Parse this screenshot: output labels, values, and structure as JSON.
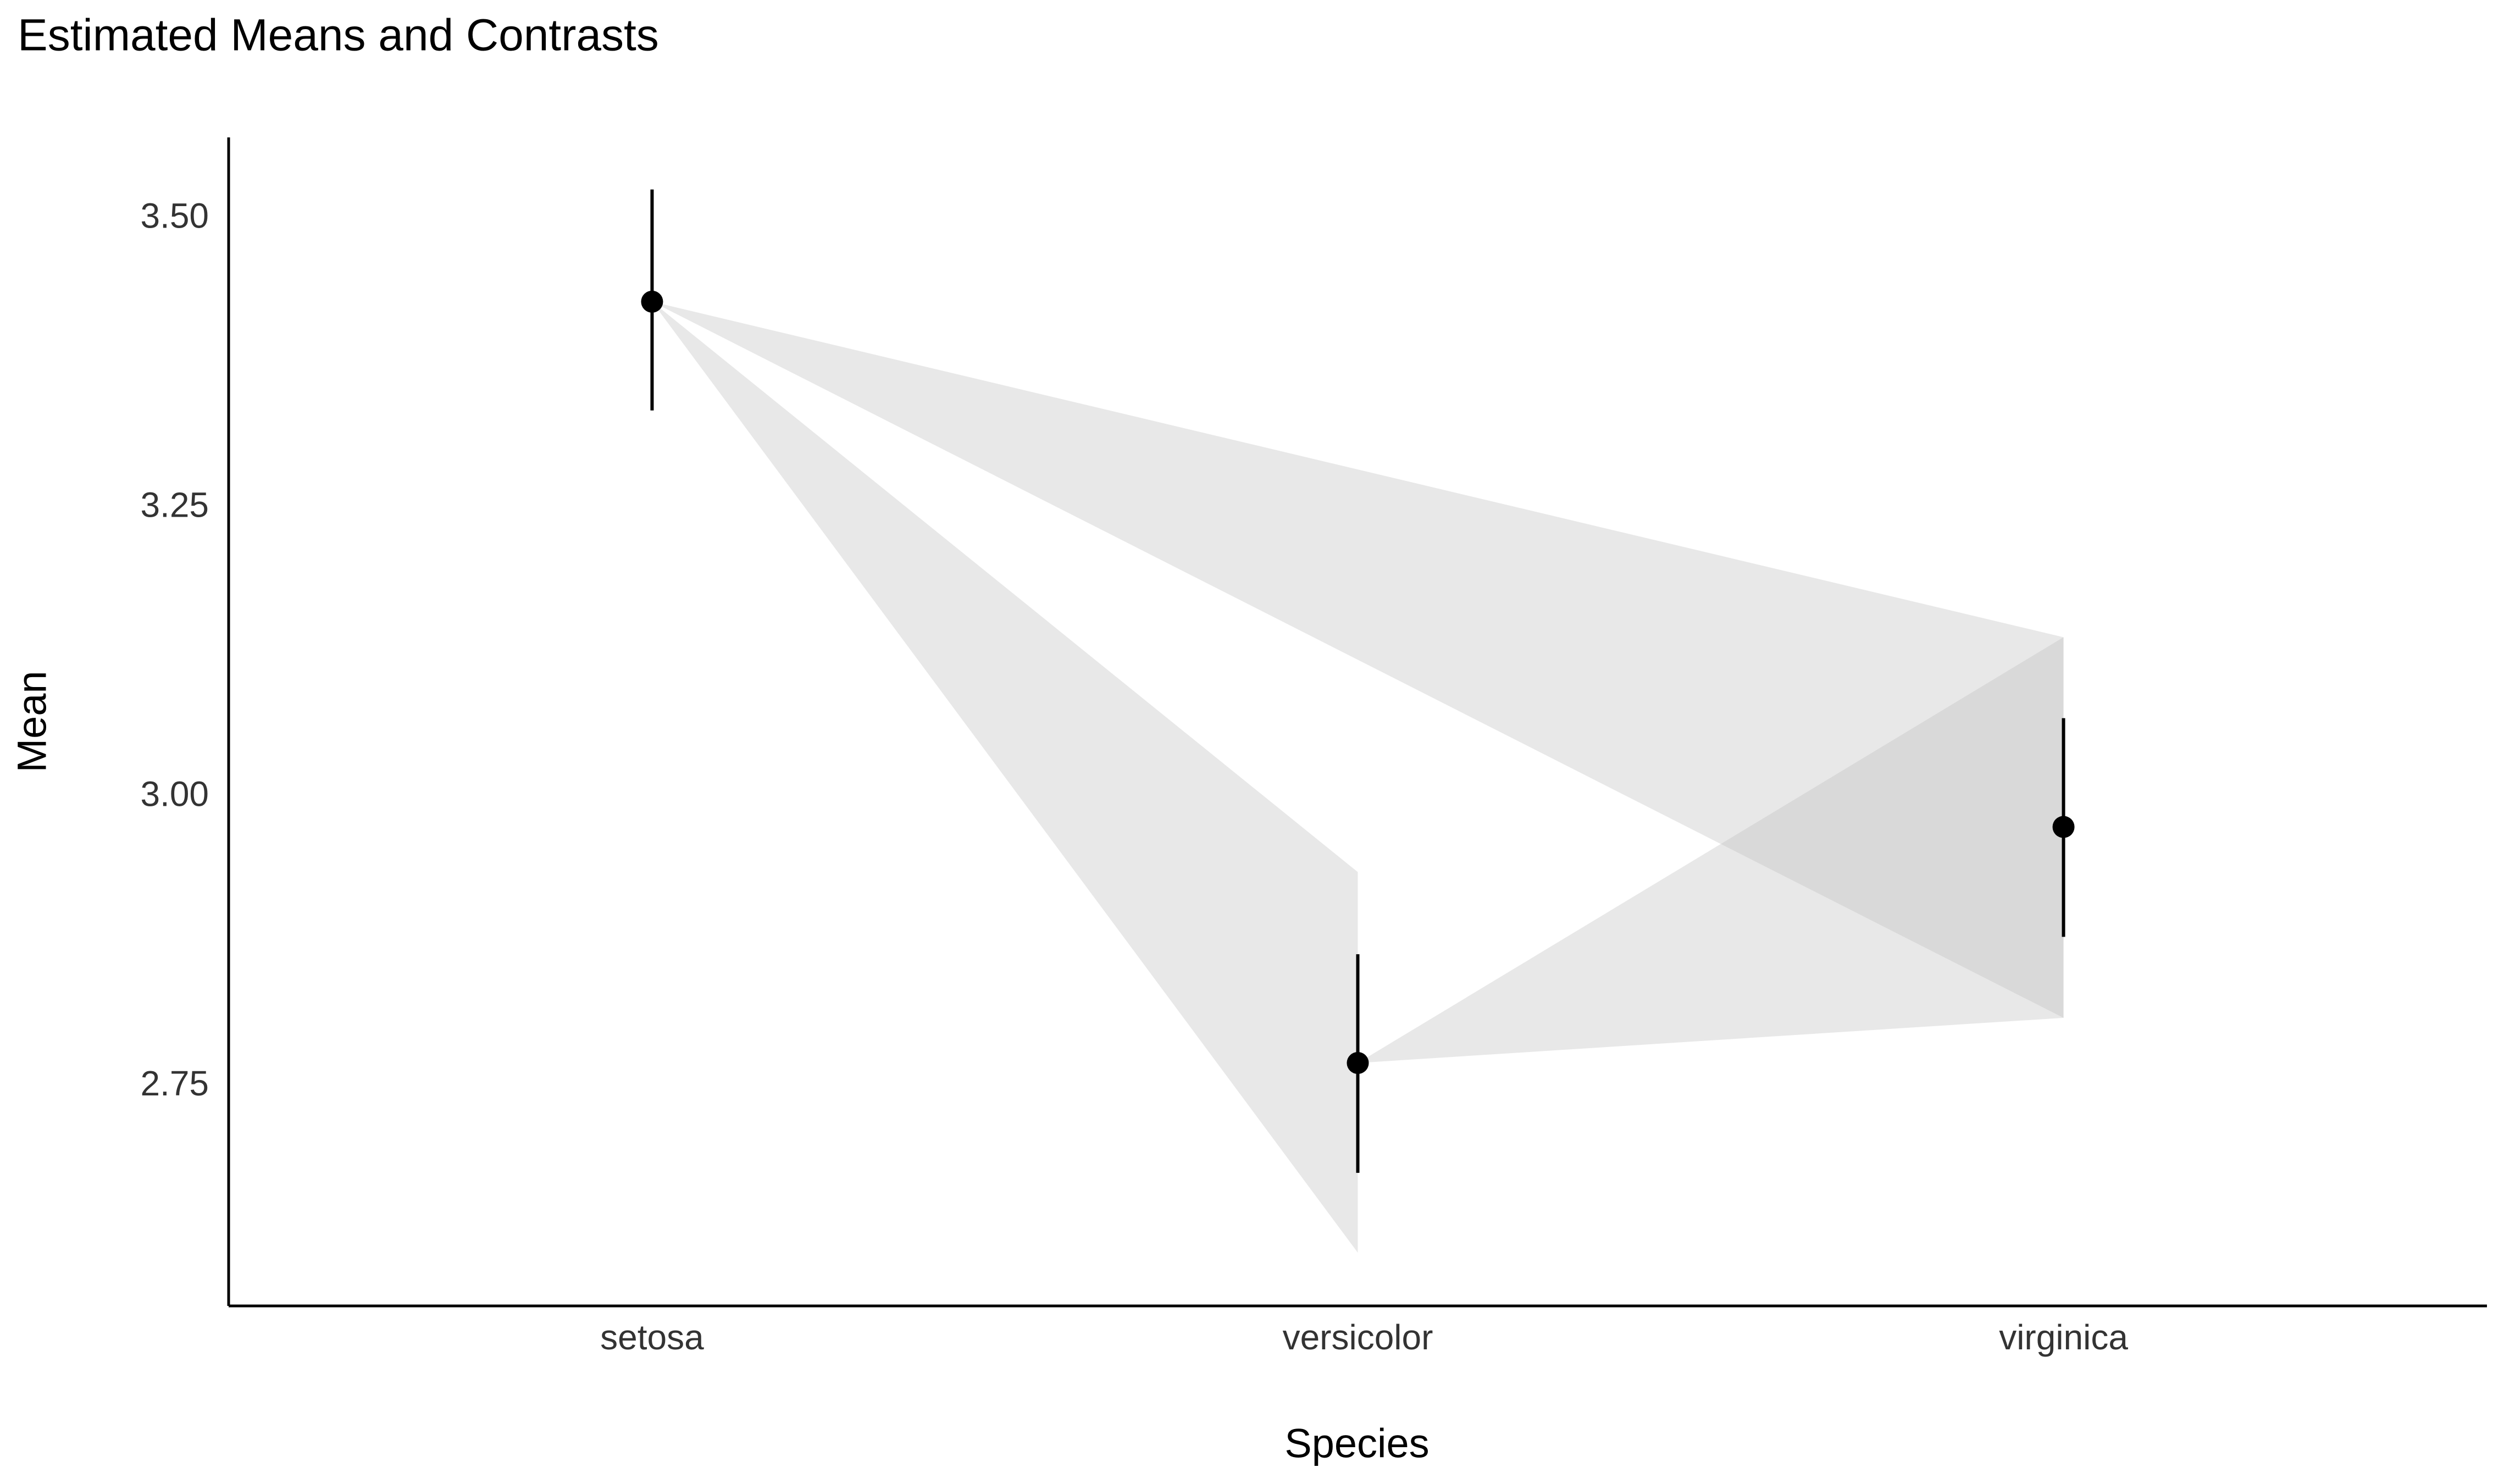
{
  "chart_data": {
    "type": "means_contrasts",
    "title": "Estimated Means and Contrasts",
    "x_label": "Species",
    "y_label": "Mean",
    "categories": [
      "setosa",
      "versicolor",
      "virginica"
    ],
    "values": [
      3.428,
      2.77,
      2.974
    ],
    "ci_low": [
      3.334,
      2.675,
      2.879
    ],
    "ci_high": [
      3.525,
      2.864,
      3.068
    ],
    "color": "#000000",
    "contrasts": [
      {
        "from": "setosa",
        "to": "versicolor",
        "low": 2.606,
        "high": 2.935
      },
      {
        "from": "setosa",
        "to": "virginica",
        "low": 2.809,
        "high": 3.138
      },
      {
        "from": "versicolor",
        "to": "virginica",
        "low": 2.809,
        "high": 3.138
      }
    ],
    "contrast_color": "#bdbdbd",
    "ylim": [
      2.56,
      3.57
    ],
    "yticks": [
      {
        "value": 2.75,
        "label": "2.75"
      },
      {
        "value": 3.0,
        "label": "3.00"
      },
      {
        "value": 3.25,
        "label": "3.25"
      },
      {
        "value": 3.5,
        "label": "3.50"
      }
    ],
    "grid": false
  }
}
